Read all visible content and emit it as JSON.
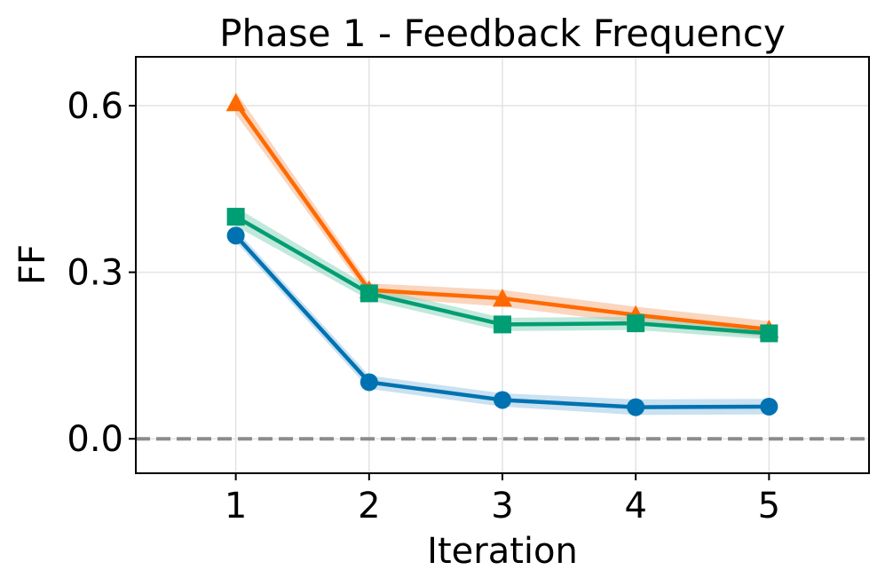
{
  "chart_data": {
    "type": "line",
    "title": "Phase 1 - Feedback Frequency",
    "xlabel": "Iteration",
    "ylabel": "FF",
    "x": [
      1,
      2,
      3,
      4,
      5
    ],
    "x_ticks": [
      "1",
      "2",
      "3",
      "4",
      "5"
    ],
    "y_ticks": [
      0.0,
      0.3,
      0.6
    ],
    "y_tick_labels": [
      "0.0",
      "0.3",
      "0.6"
    ],
    "xlim": [
      0.25,
      5.75
    ],
    "ylim": [
      -0.062,
      0.688
    ],
    "grid": true,
    "reference_line": {
      "y": 0.0,
      "style": "dashed",
      "color": "#8c8c8c"
    },
    "series": [
      {
        "name": "orange-triangle",
        "marker": "triangle",
        "color": "#ff6a00",
        "band_color": "#f6b48a",
        "values": [
          0.605,
          0.268,
          0.253,
          0.223,
          0.197
        ],
        "lower": [
          0.585,
          0.256,
          0.238,
          0.208,
          0.182
        ],
        "upper": [
          0.625,
          0.28,
          0.268,
          0.238,
          0.212
        ]
      },
      {
        "name": "green-square",
        "marker": "square",
        "color": "#009e73",
        "band_color": "#8fd6bf",
        "values": [
          0.4,
          0.262,
          0.206,
          0.208,
          0.19
        ],
        "lower": [
          0.383,
          0.25,
          0.194,
          0.196,
          0.179
        ],
        "upper": [
          0.417,
          0.274,
          0.218,
          0.22,
          0.201
        ]
      },
      {
        "name": "blue-circle",
        "marker": "circle",
        "color": "#0072b2",
        "band_color": "#9dc8e4",
        "values": [
          0.366,
          0.102,
          0.07,
          0.057,
          0.058
        ],
        "lower": [
          0.355,
          0.09,
          0.058,
          0.043,
          0.044
        ],
        "upper": [
          0.377,
          0.114,
          0.082,
          0.071,
          0.072
        ]
      }
    ]
  }
}
